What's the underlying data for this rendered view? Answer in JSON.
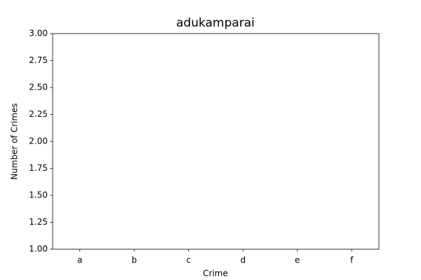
{
  "chart_data": {
    "type": "bar",
    "title": "adukamparai",
    "x_label": "Crime",
    "y_label": "Number of Crimes",
    "categories": [
      "a",
      "b",
      "c",
      "d",
      "e",
      "f"
    ],
    "ylim": [
      1,
      3
    ],
    "yticks": [
      {
        "value": 1,
        "label": "1.00"
      },
      1.25,
      {
        "value": 1.5,
        "label": "1.50"
      },
      1.75,
      {
        "value": 2,
        "label": "2.00"
      },
      2.25,
      {
        "value": 2.5,
        "label": "2.50"
      },
      2.75,
      {
        "value": 3,
        "label": "3.00"
      }
    ],
    "grid": false
  }
}
